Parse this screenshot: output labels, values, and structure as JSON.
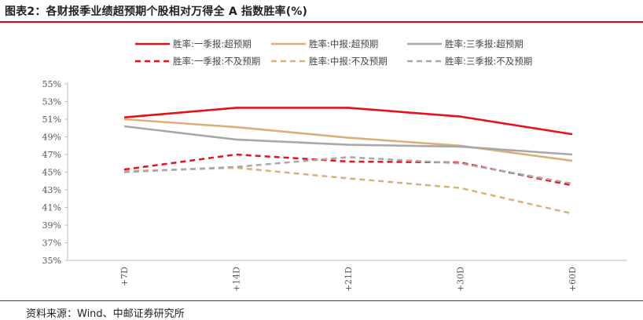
{
  "header": {
    "title": "图表2：各财报季业绩超预期个股相对万得全 A 指数胜率(%)"
  },
  "footer": {
    "source": "资料来源：Wind、中邮证券研究所"
  },
  "colors": {
    "accent_rule": "#d9000b",
    "red": "#e8101a",
    "tan": "#d9b078",
    "gray": "#a8a8a8"
  },
  "chart_data": {
    "type": "line",
    "title": "",
    "xlabel": "",
    "ylabel": "",
    "categories": [
      "+7D",
      "+14D",
      "+21D",
      "+30D",
      "+60D"
    ],
    "ylim": [
      35,
      55
    ],
    "yticks": [
      "35%",
      "37%",
      "39%",
      "41%",
      "43%",
      "45%",
      "47%",
      "49%",
      "51%",
      "53%",
      "55%"
    ],
    "grid": false,
    "legend_position": "top",
    "series": [
      {
        "name": "胜率:一季报:超预期",
        "color": "#e8101a",
        "dash": "solid",
        "values": [
          51.2,
          52.3,
          52.3,
          51.3,
          49.3
        ]
      },
      {
        "name": "胜率:中报:超预期",
        "color": "#d9b078",
        "dash": "solid",
        "values": [
          51.0,
          50.1,
          48.9,
          48.0,
          46.3
        ]
      },
      {
        "name": "胜率:三季报:超预期",
        "color": "#a8a8a8",
        "dash": "solid",
        "values": [
          50.2,
          48.7,
          48.1,
          47.9,
          47.0
        ]
      },
      {
        "name": "胜率:一季报:不及预期",
        "color": "#e8101a",
        "dash": "dashed",
        "values": [
          45.3,
          47.0,
          46.2,
          46.1,
          43.5
        ]
      },
      {
        "name": "胜率:中报:不及预期",
        "color": "#d9b078",
        "dash": "dashed",
        "values": [
          45.1,
          45.5,
          44.3,
          43.2,
          40.3
        ]
      },
      {
        "name": "胜率:三季报:不及预期",
        "color": "#a8a8a8",
        "dash": "dashed",
        "values": [
          45.0,
          45.6,
          46.7,
          46.0,
          43.7
        ]
      }
    ]
  }
}
